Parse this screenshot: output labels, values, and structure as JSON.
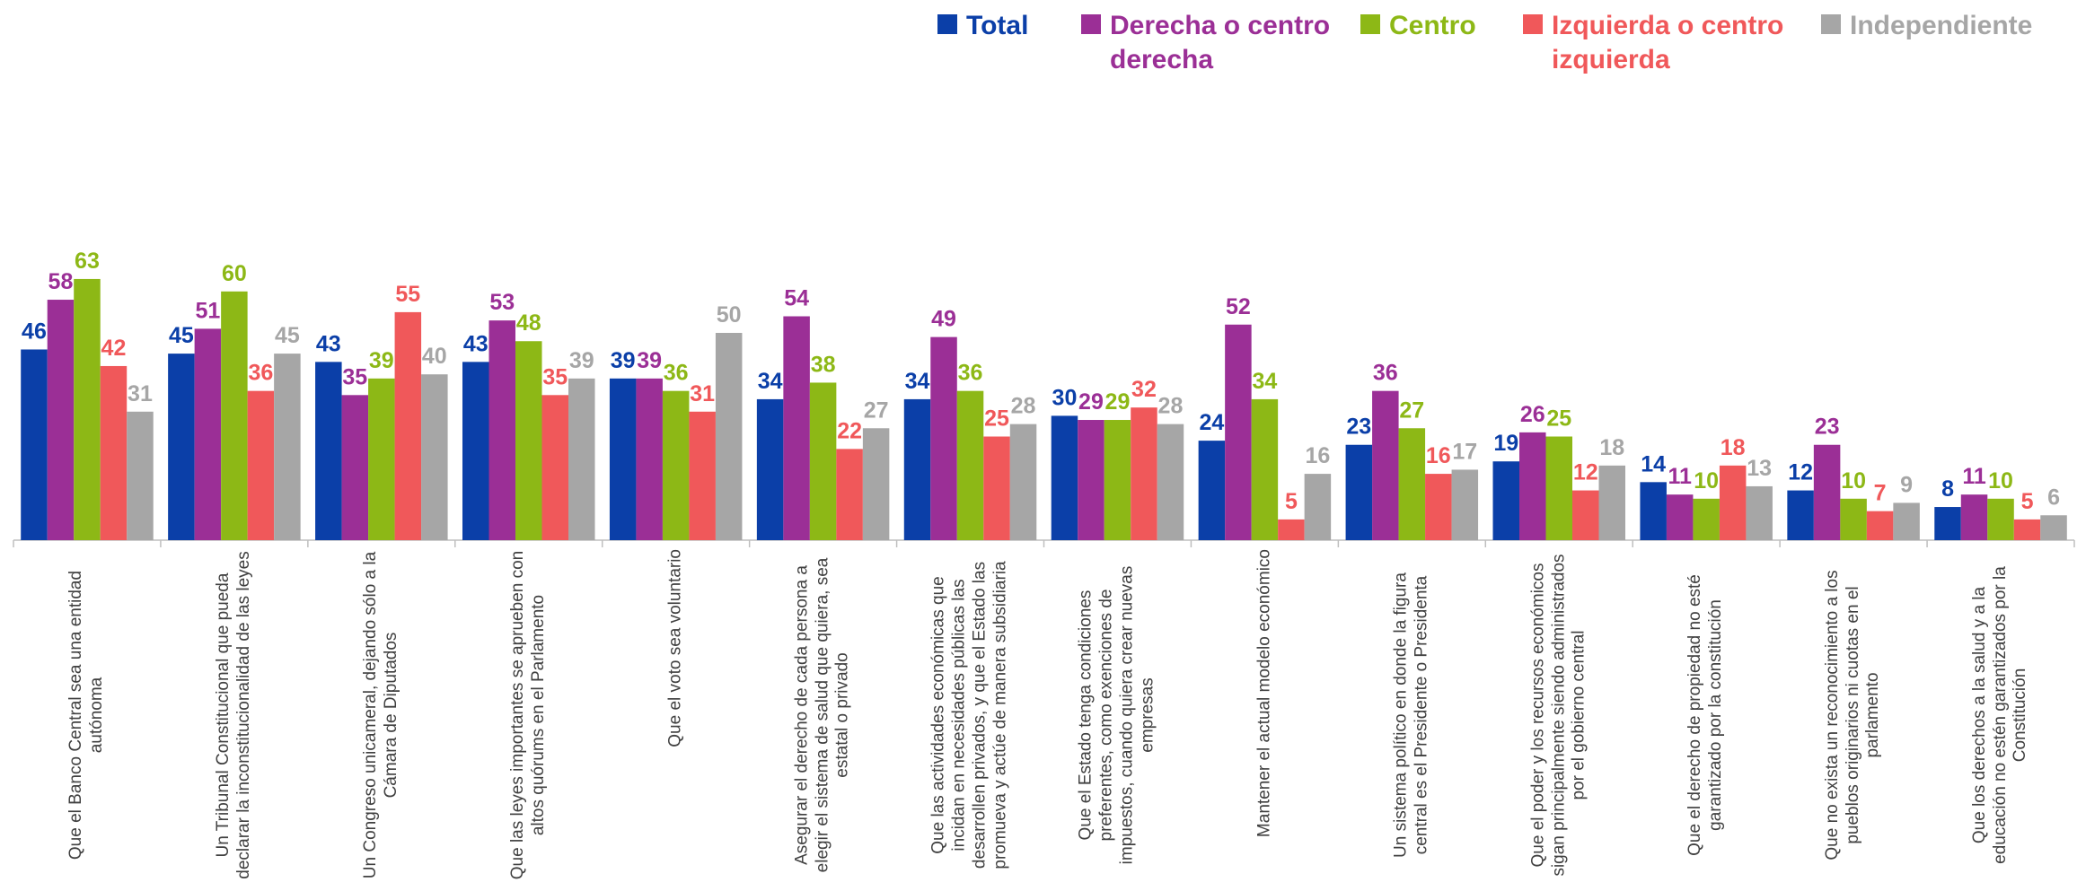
{
  "chart_data": {
    "type": "bar",
    "categories": [
      "Que el Banco Central sea una entidad autónoma",
      "Un Tribunal Constitucional que pueda declarar la inconstitucionalidad de las leyes",
      "Un Congreso unicameral, dejando sólo a la Cámara de Diputados",
      "Que las leyes importantes se aprueben con altos quórums en el Parlamento",
      "Que el voto sea voluntario",
      "Asegurar el derecho de cada persona a elegir el sistema de salud que quiera, sea estatal o privado",
      "Que las actividades económicas que incidan en necesidades públicas las desarrollen privados, y que el Estado las promueva y actúe de manera subsidiaria",
      "Que el Estado tenga condiciones preferentes, como exenciones de impuestos, cuando quiera crear nuevas empresas",
      "Mantener el actual modelo económico",
      "Un sistema político en donde la figura central es el Presidente o Presidenta",
      "Que el poder y los recursos económicos sigan principalmente siendo administrados por el gobierno central",
      "Que el derecho de propiedad no esté garantizado por la constitución",
      "Que no exista un reconocimiento a los pueblos originarios ni cuotas en el parlamento",
      "Que los derechos a la salud y a la educación no estén garantizados por la Constitución"
    ],
    "series": [
      {
        "name": "Total",
        "color": "#0b3fa8",
        "values": [
          46,
          45,
          43,
          43,
          39,
          34,
          34,
          30,
          24,
          23,
          19,
          14,
          12,
          8
        ]
      },
      {
        "name": "Derecha o centro derecha",
        "color": "#9b2f96",
        "values": [
          58,
          51,
          35,
          53,
          39,
          54,
          49,
          29,
          52,
          36,
          26,
          11,
          23,
          11
        ]
      },
      {
        "name": "Centro",
        "color": "#8db816",
        "values": [
          63,
          60,
          39,
          48,
          36,
          38,
          36,
          29,
          34,
          27,
          25,
          10,
          10,
          10
        ]
      },
      {
        "name": "Izquierda o centro izquierda",
        "color": "#f0585a",
        "values": [
          42,
          36,
          55,
          35,
          31,
          22,
          25,
          32,
          5,
          16,
          12,
          18,
          7,
          5
        ]
      },
      {
        "name": "Independiente",
        "color": "#a6a6a6",
        "values": [
          31,
          45,
          40,
          39,
          50,
          27,
          28,
          28,
          16,
          17,
          18,
          13,
          9,
          6
        ]
      }
    ],
    "ylim": [
      0,
      100
    ]
  }
}
